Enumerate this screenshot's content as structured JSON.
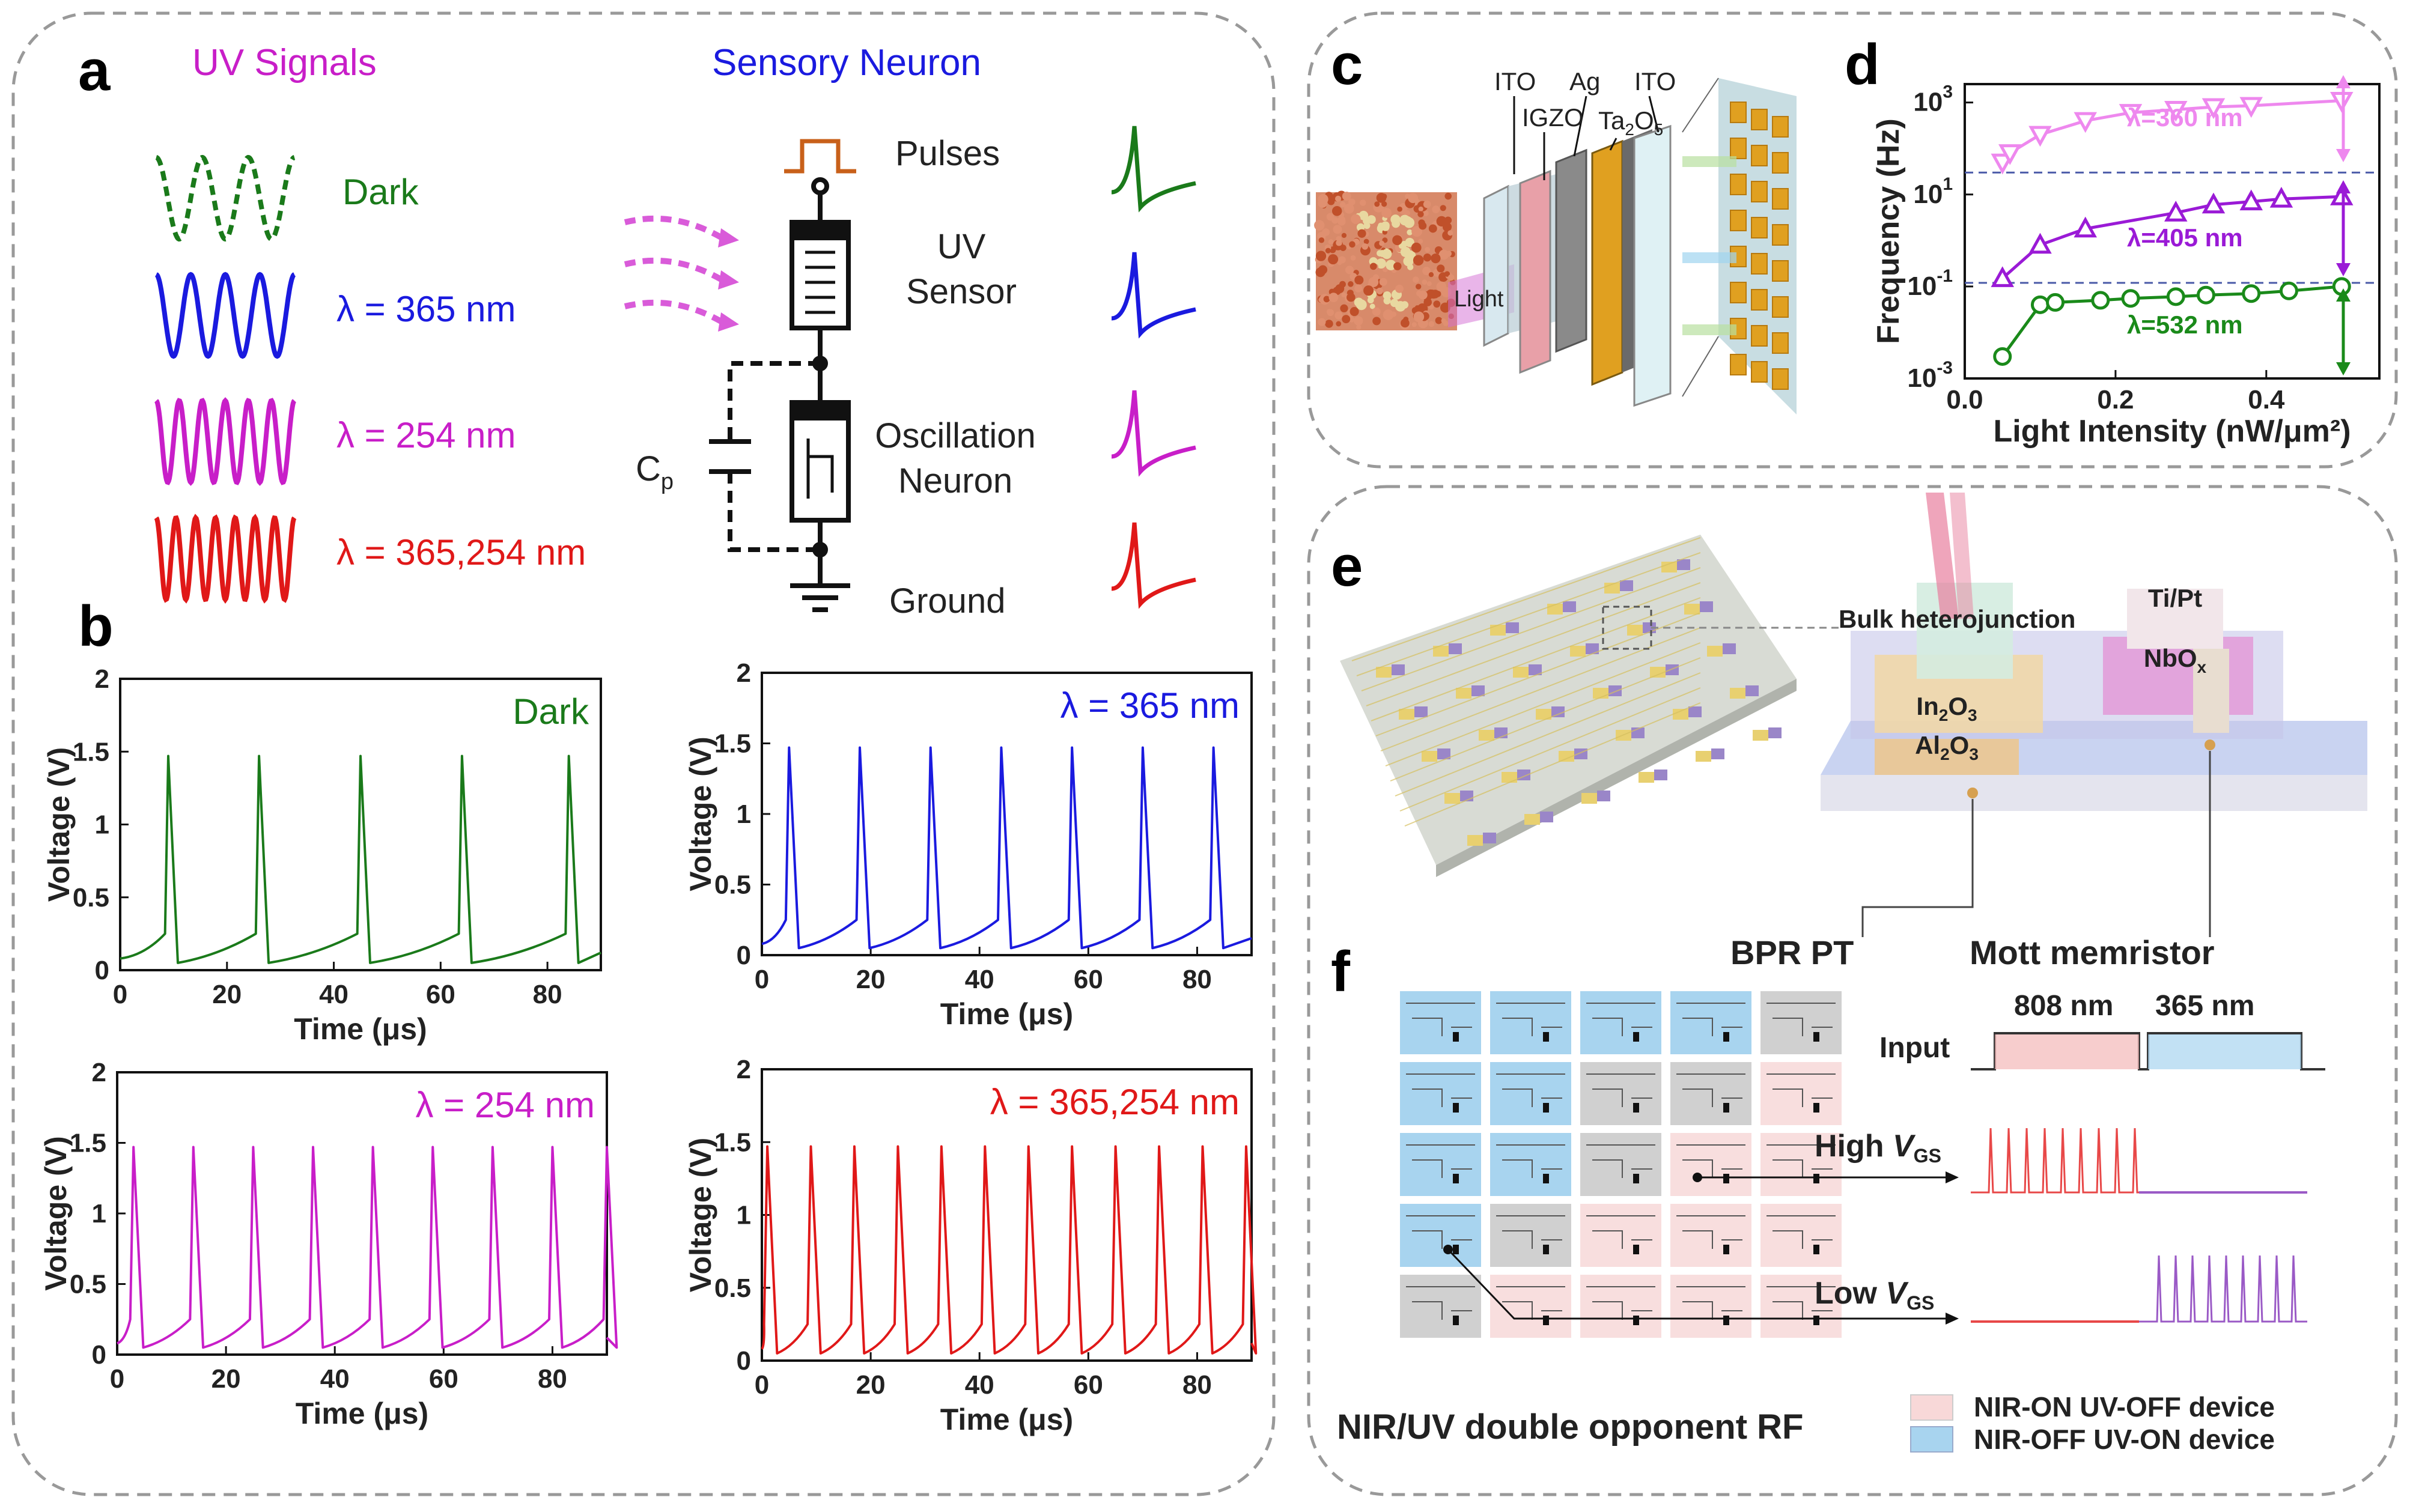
{
  "panel_labels": {
    "a": "a",
    "b": "b",
    "c": "c",
    "d": "d",
    "e": "e",
    "f": "f"
  },
  "colors": {
    "dark": "#1a7a1a",
    "l365": "#1a1adf",
    "l254": "#c81ec8",
    "l365254": "#e01818",
    "pink": "#ee88ee",
    "purple": "#9a1ad6",
    "green": "#1a8a1a"
  },
  "panel_a": {
    "uv_title": "UV Signals",
    "sensory_title": "Sensory Neuron",
    "signals": [
      {
        "label": "Dark",
        "color": "#1a7a1a"
      },
      {
        "label": "λ = 365 nm",
        "color": "#1a1adf"
      },
      {
        "label": "λ = 254 nm",
        "color": "#c81ec8"
      },
      {
        "label": "λ = 365,254 nm",
        "color": "#e01818"
      }
    ],
    "circuit": {
      "pulses": "Pulses",
      "uv_sensor": "UV\nSensor",
      "oscillation": "Oscillation\nNeuron",
      "ground": "Ground",
      "cp": "C",
      "cp_sub": "p"
    }
  },
  "panel_b": {
    "xlabel": "Time (μs)",
    "ylabel": "Voltage (V)",
    "plots": [
      {
        "title": "Dark",
        "color": "#1a7a1a",
        "spikes": [
          9,
          26,
          45,
          64,
          84
        ],
        "yticks": [
          "0",
          "0.5",
          "1",
          "1.5",
          "2"
        ]
      },
      {
        "title": "λ = 365 nm",
        "color": "#1a1adf",
        "spikes": [
          5,
          18,
          31,
          44,
          57,
          70,
          83
        ],
        "yticks": [
          "0",
          "0.5",
          "1",
          "1.5",
          "2"
        ]
      },
      {
        "title": "λ = 254 nm",
        "color": "#c81ec8",
        "spikes": [
          3,
          14,
          25,
          36,
          47,
          58,
          69,
          80,
          90
        ],
        "yticks": [
          "0",
          "0.5",
          "1",
          "1.5",
          "2"
        ]
      },
      {
        "title": "λ = 365,254 nm",
        "color": "#e01818",
        "spikes": [
          1,
          9,
          17,
          25,
          33,
          41,
          49,
          57,
          65,
          73,
          81,
          89
        ],
        "yticks": [
          "0",
          "0.5",
          "1",
          "1.5",
          "2"
        ]
      }
    ],
    "xticks": [
      "0",
      "20",
      "40",
      "60",
      "80"
    ]
  },
  "panel_c": {
    "layers": [
      "ITO",
      "IGZO",
      "Ag",
      "Ta2O5",
      "ITO"
    ],
    "light": "Light"
  },
  "chart_data": {
    "type": "line",
    "title": "",
    "xlabel": "Light Intensity (nW/μm²)",
    "ylabel": "Frequency (Hz)",
    "xlim": [
      0,
      0.55
    ],
    "ylim_log10": [
      -3,
      3.4
    ],
    "xticks": [
      "0.0",
      "0.2",
      "0.4"
    ],
    "yticks": [
      "10",
      "10",
      "10",
      "10"
    ],
    "ytick_exps": [
      "-3",
      "-1",
      "1",
      "3"
    ],
    "series": [
      {
        "name": "λ=360 nm",
        "color": "#ee88ee",
        "x": [
          0.05,
          0.06,
          0.1,
          0.16,
          0.22,
          0.28,
          0.33,
          0.38,
          0.5
        ],
        "y": [
          50,
          80,
          200,
          400,
          600,
          700,
          800,
          850,
          1100
        ]
      },
      {
        "name": "λ=405 nm",
        "color": "#9a1ad6",
        "x": [
          0.05,
          0.1,
          0.16,
          0.28,
          0.33,
          0.38,
          0.42,
          0.5
        ],
        "y": [
          0.15,
          0.8,
          1.8,
          4,
          6,
          7,
          8,
          9
        ]
      },
      {
        "name": "λ=532 nm",
        "color": "#1a8a1a",
        "x": [
          0.05,
          0.1,
          0.12,
          0.18,
          0.22,
          0.28,
          0.32,
          0.38,
          0.43,
          0.5
        ],
        "y": [
          0.003,
          0.04,
          0.045,
          0.05,
          0.055,
          0.06,
          0.065,
          0.07,
          0.08,
          0.1
        ]
      }
    ],
    "hlines": [
      30,
      0.12
    ]
  },
  "panel_e": {
    "bulk": "Bulk heterojunction",
    "tipt": "Ti/Pt",
    "nbox": "NbO",
    "nbox_sub": "x",
    "in2o3": "In",
    "in2o3_rest": "O",
    "al2o3": "Al",
    "al2o3_rest": "O"
  },
  "panel_f": {
    "bpr": "BPR PT",
    "mott": "Mott memristor",
    "w808": "808 nm",
    "w365": "365 nm",
    "input": "Input",
    "high": "High V",
    "low": "Low V",
    "gs": "GS",
    "rf": "NIR/UV double opponent RF",
    "legend_on": "NIR-ON UV-OFF device",
    "legend_off": "NIR-OFF UV-ON device"
  }
}
